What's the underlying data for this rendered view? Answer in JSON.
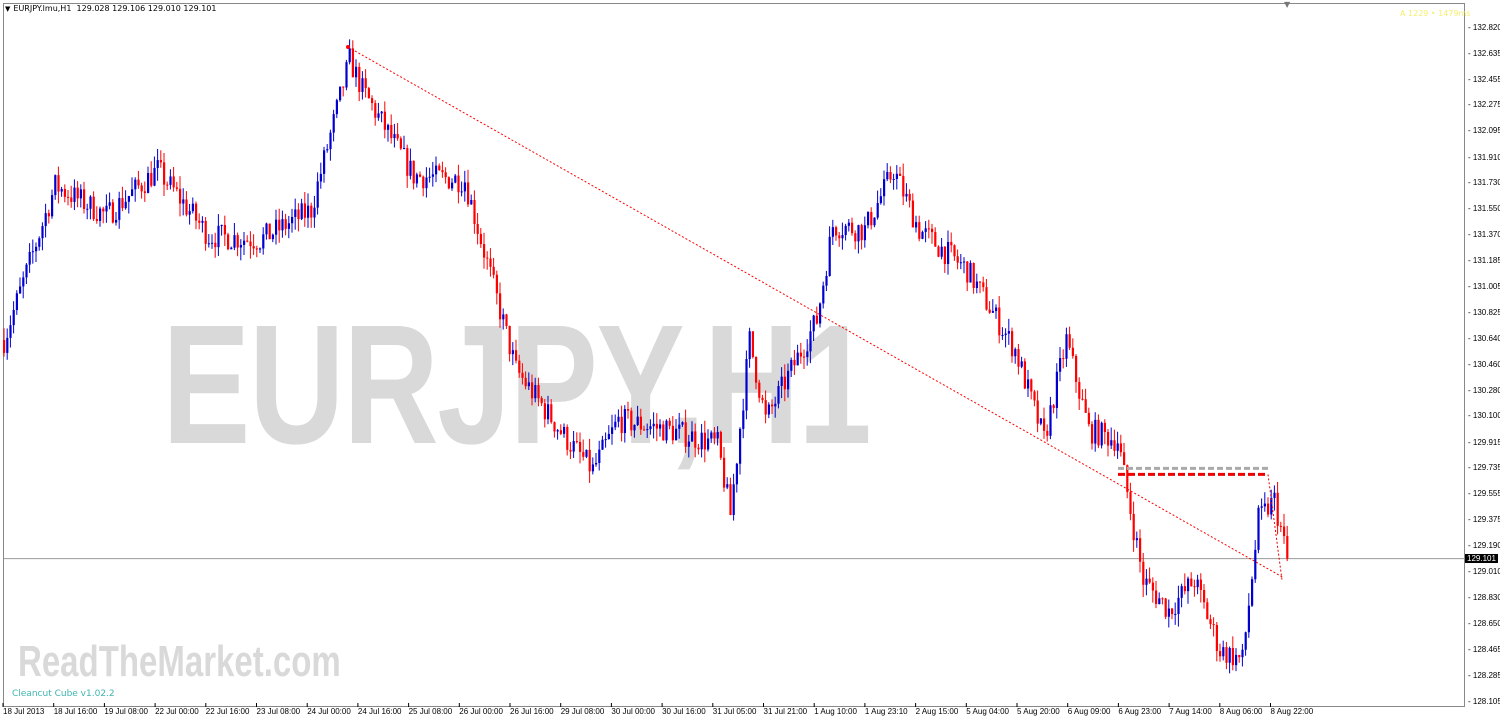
{
  "header": {
    "symbol": "EURJPY.lmu,H1",
    "ohlc": "129.028 129.106 129.010 129.101"
  },
  "top_right_text": "A 1229 • 1479ms",
  "watermark": "EURJPY,H1",
  "brand": "ReadTheMarket.com",
  "indicator_label": "Cleancut Cube v1.02.2",
  "current_price": "129.101",
  "colors": {
    "bull": "#0000d0",
    "bear": "#ff0000",
    "trendline": "#ff0000",
    "version_text": "#3fb5b0"
  },
  "chart_data": {
    "type": "candlestick",
    "y_ticks": [
      "132.820",
      "132.635",
      "132.455",
      "132.275",
      "132.095",
      "131.910",
      "131.730",
      "131.550",
      "131.370",
      "131.185",
      "131.005",
      "130.825",
      "130.640",
      "130.460",
      "130.280",
      "130.100",
      "129.915",
      "129.735",
      "129.555",
      "129.375",
      "129.190",
      "129.010",
      "128.830",
      "128.650",
      "128.465",
      "128.285",
      "128.105"
    ],
    "ylim": [
      128.105,
      132.82
    ],
    "x_ticks": [
      "18 Jul 2013",
      "18 Jul 16:00",
      "19 Jul 08:00",
      "22 Jul 00:00",
      "22 Jul 16:00",
      "23 Jul 08:00",
      "24 Jul 00:00",
      "24 Jul 16:00",
      "25 Jul 08:00",
      "26 Jul 00:00",
      "26 Jul 16:00",
      "29 Jul 08:00",
      "30 Jul 00:00",
      "30 Jul 16:00",
      "31 Jul 05:00",
      "31 Jul 21:00",
      "1 Aug 10:00",
      "1 Aug 23:10",
      "2 Aug 15:00",
      "5 Aug 04:00",
      "5 Aug 20:00",
      "6 Aug 09:00",
      "6 Aug 23:00",
      "7 Aug 14:00",
      "8 Aug 06:00",
      "8 Aug 22:00"
    ],
    "approx_close_path": [
      [
        0,
        130.63
      ],
      [
        16,
        131.71
      ],
      [
        32,
        131.5
      ],
      [
        48,
        131.82
      ],
      [
        64,
        131.36
      ],
      [
        80,
        131.33
      ],
      [
        96,
        131.54
      ],
      [
        108,
        132.59
      ],
      [
        112,
        132.38
      ],
      [
        128,
        131.78
      ],
      [
        144,
        131.75
      ],
      [
        160,
        130.42
      ],
      [
        176,
        129.93
      ],
      [
        184,
        129.72
      ],
      [
        192,
        130.07
      ],
      [
        208,
        130.0
      ],
      [
        223,
        129.9
      ],
      [
        227,
        129.41
      ],
      [
        233,
        130.63
      ],
      [
        238,
        130.07
      ],
      [
        254,
        130.77
      ],
      [
        259,
        131.43
      ],
      [
        269,
        131.4
      ],
      [
        278,
        131.82
      ],
      [
        286,
        131.4
      ],
      [
        301,
        131.12
      ],
      [
        316,
        130.56
      ],
      [
        325,
        129.93
      ],
      [
        332,
        130.63
      ],
      [
        339,
        130.0
      ],
      [
        348,
        129.93
      ],
      [
        356,
        128.95
      ],
      [
        364,
        128.74
      ],
      [
        372,
        128.95
      ],
      [
        380,
        128.46
      ],
      [
        387,
        128.39
      ],
      [
        392,
        129.37
      ],
      [
        397,
        129.51
      ],
      [
        401,
        129.101
      ]
    ],
    "trendline": {
      "from": 132.68,
      "to": 128.97
    },
    "box_level": 129.69
  }
}
